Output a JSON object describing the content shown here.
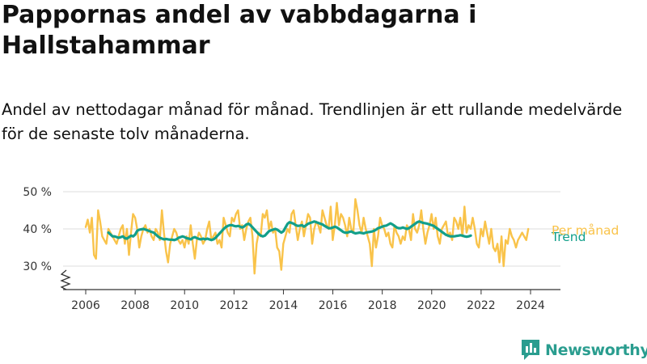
{
  "title": "Pappornas andel av vabbdagarna i Hallstahammar",
  "subtitle": "Andel av nettodagar månad för månad. Trendlinjen är ett rullande medelvärde för de senaste tolv månaderna.",
  "brand": {
    "name": "Newsworthy",
    "color": "#2a9d8f",
    "icon": "newsworthy-logo-icon"
  },
  "chart_data": {
    "type": "line",
    "title": "Pappornas andel av vabbdagarna i Hallstahammar",
    "xlabel": "",
    "ylabel": "",
    "xlim": [
      2005.5,
      2024.9
    ],
    "ylim": [
      25,
      50
    ],
    "y_axis_break": true,
    "grid": "horizontal",
    "yticks": [
      30,
      40,
      50
    ],
    "ytick_labels": [
      "30 %",
      "40 %",
      "50 %"
    ],
    "xticks": [
      2006,
      2008,
      2010,
      2012,
      2014,
      2016,
      2018,
      2020,
      2022,
      2024
    ],
    "xtick_labels": [
      "2006",
      "2008",
      "2010",
      "2012",
      "2014",
      "2016",
      "2018",
      "2020",
      "2022",
      "2024"
    ],
    "legend": "direct labels at right end of lines",
    "series": [
      {
        "name": "Per månad",
        "color": "#f9c34a",
        "x_start": 2006.0,
        "x_step": 0.0833,
        "values": [
          40.5,
          42.5,
          39,
          43,
          33,
          32,
          45,
          42,
          38,
          37,
          36,
          40,
          39,
          38,
          37,
          36,
          38,
          40,
          41,
          36,
          40,
          33,
          39,
          44,
          43,
          40,
          35,
          38,
          40,
          41,
          39,
          40,
          38,
          37,
          40,
          39,
          37,
          45,
          39,
          34,
          31,
          36,
          38,
          40,
          39,
          37,
          36,
          37,
          35,
          38,
          36,
          41,
          36,
          32,
          37,
          39,
          38,
          36,
          37,
          40,
          42,
          37,
          38,
          39,
          36,
          37,
          35,
          43,
          41,
          39,
          38,
          43,
          42,
          44,
          45,
          40,
          41,
          37,
          40,
          42,
          43,
          38,
          28,
          36,
          39,
          38,
          44,
          43,
          45,
          40,
          42,
          39,
          40,
          35,
          34,
          29,
          36,
          38,
          40,
          39,
          44,
          45,
          41,
          37,
          40,
          42,
          38,
          41,
          44,
          43,
          36,
          40,
          42,
          41,
          39,
          45,
          43,
          41,
          40,
          46,
          37,
          41,
          47,
          41,
          44,
          43,
          41,
          38,
          43,
          40,
          39,
          48,
          45,
          41,
          39,
          43,
          40,
          38,
          36,
          30,
          40,
          35,
          38,
          43,
          41,
          40,
          38,
          39,
          36,
          35,
          41,
          39,
          38,
          36,
          38,
          37,
          41,
          40,
          37,
          44,
          40,
          39,
          41,
          45,
          40,
          36,
          39,
          41,
          44,
          40,
          43,
          38,
          36,
          40,
          41,
          42,
          38,
          39,
          37,
          43,
          42,
          40,
          43,
          38,
          46,
          39,
          41,
          40,
          43,
          40,
          36,
          35,
          40,
          38,
          42,
          39,
          36,
          40,
          35,
          34,
          36,
          31,
          38,
          30,
          37,
          36,
          40,
          38,
          37,
          35,
          37,
          38,
          39,
          38,
          37,
          40
        ]
      },
      {
        "name": "Trend",
        "color": "#129f8a",
        "x_start": 2006.92,
        "x_step": 0.0833,
        "values": [
          39,
          38.5,
          38,
          38,
          37.8,
          37.6,
          37.8,
          38,
          37.5,
          37.4,
          37.8,
          38.2,
          38,
          38.5,
          39.5,
          39.8,
          39.9,
          40,
          39.8,
          39.6,
          39.4,
          39.2,
          39,
          38.5,
          38,
          37.6,
          37.4,
          37.2,
          37.3,
          37.2,
          37.1,
          37.1,
          37,
          37.2,
          37.6,
          37.8,
          38,
          37.8,
          37.5,
          37.4,
          37.2,
          37.6,
          37.8,
          37.5,
          37.3,
          37.2,
          37.4,
          37.2,
          37.4,
          37.2,
          37,
          37.2,
          37.6,
          38.2,
          38.8,
          39.4,
          40,
          40.5,
          40.8,
          41,
          41,
          40.8,
          40.7,
          40.8,
          40.6,
          40.4,
          40.7,
          41.2,
          41.4,
          41,
          40.4,
          39.8,
          39.2,
          38.6,
          38.2,
          38,
          38.2,
          38.8,
          39.4,
          39.6,
          39.8,
          40,
          39.8,
          39.4,
          39,
          39.4,
          40.4,
          41.4,
          41.8,
          41.6,
          41.4,
          41,
          40.8,
          40.9,
          41,
          40.6,
          41,
          41.4,
          41.6,
          41.8,
          42,
          41.8,
          41.6,
          41.4,
          41.2,
          40.8,
          40.5,
          40.2,
          40.2,
          40.4,
          40.6,
          40.4,
          40,
          39.6,
          39.2,
          39,
          39,
          39.2,
          39.3,
          39,
          38.8,
          38.9,
          39,
          38.9,
          38.8,
          39,
          39.1,
          39.2,
          39.3,
          39.5,
          39.8,
          40.2,
          40.4,
          40.6,
          40.8,
          40.9,
          41.2,
          41.5,
          41.2,
          40.8,
          40.4,
          40.2,
          40.2,
          40.4,
          40.2,
          40,
          40.2,
          40.6,
          41,
          41.4,
          41.8,
          42,
          41.8,
          41.6,
          41.5,
          41.4,
          41.2,
          41,
          40.8,
          40.4,
          40,
          39.6,
          39.2,
          38.8,
          38.4,
          38.2,
          38,
          38,
          38,
          38.1,
          38.2,
          38.3,
          38.2,
          38,
          37.9,
          38,
          38.2
        ]
      }
    ],
    "series_labels": [
      "Per månad",
      "Trend"
    ]
  }
}
